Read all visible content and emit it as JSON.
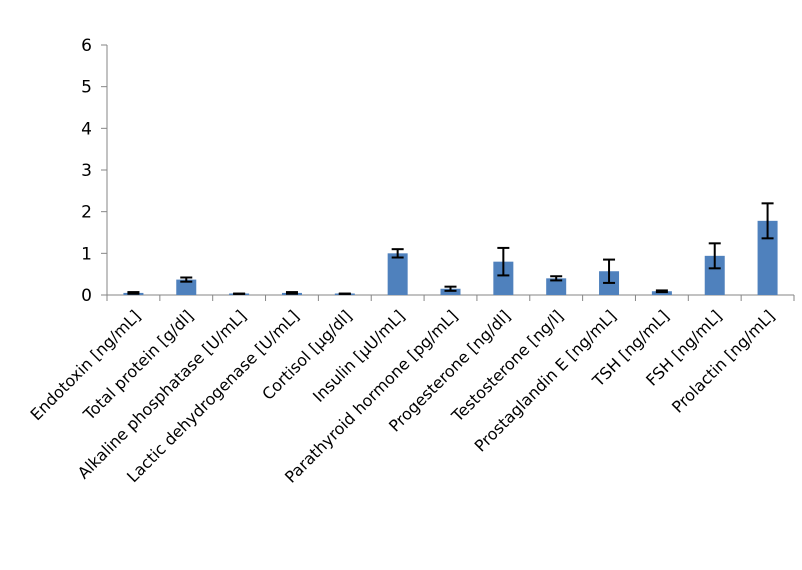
{
  "chart_data": {
    "type": "bar",
    "title": "",
    "xlabel": "",
    "ylabel": "",
    "ylim": [
      0,
      6
    ],
    "yticks": [
      0,
      1,
      2,
      3,
      4,
      5,
      6
    ],
    "grid": false,
    "legend": "none",
    "bar_color": "#4f81bd",
    "categories": [
      "Endotoxin [ng/mL]",
      "Total protein [g/dl]",
      "Alkaline phosphatase [U/mL]",
      "Lactic dehydrogenase [U/mL]",
      "Cortisol [µg/dl]",
      "Insulin [µU/mL]",
      "Parathyroid hormone [pg/mL]",
      "Progesterone [ng/dl]",
      "Testosterone [ng/l]",
      "Prostaglandin E [ng/mL]",
      "TSH [ng/mL]",
      "FSH [ng/mL]",
      "Prolactin [ng/mL]"
    ],
    "series": [
      {
        "values": [
          0.05,
          0.37,
          0.03,
          0.05,
          0.03,
          1.0,
          0.15,
          0.8,
          0.4,
          0.57,
          0.09,
          0.94,
          1.78
        ],
        "errors": [
          0.02,
          0.05,
          0.005,
          0.02,
          0.005,
          0.1,
          0.05,
          0.33,
          0.05,
          0.28,
          0.02,
          0.3,
          0.42
        ]
      }
    ]
  }
}
